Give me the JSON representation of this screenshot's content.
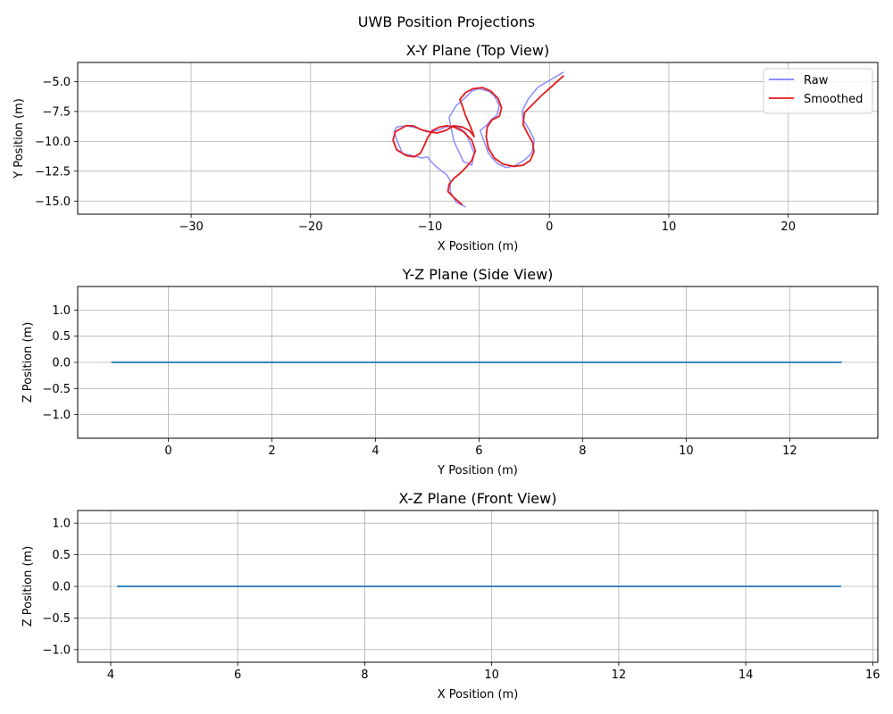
{
  "figure_title": "UWB Position Projections",
  "chart_data": [
    {
      "type": "line",
      "title": "X-Y Plane (Top View)",
      "xlabel": "X Position (m)",
      "ylabel": "Y Position (m)",
      "xlim": [
        -39.5,
        27.5
      ],
      "ylim": [
        -16.1,
        -3.4
      ],
      "xticks": [
        -30,
        -20,
        -10,
        0,
        10,
        20
      ],
      "yticks": [
        -15.0,
        -12.5,
        -10.0,
        -7.5,
        -5.0
      ],
      "xtick_labels": [
        "−30",
        "−20",
        "−10",
        "0",
        "10",
        "20"
      ],
      "ytick_labels": [
        "−15.0",
        "−12.5",
        "−10.0",
        "−7.5",
        "−5.0"
      ],
      "grid": true,
      "legend": "top-right",
      "series": [
        {
          "name": "Raw",
          "color": "#7f7fff",
          "x": [
            -7.0,
            -7.8,
            -8.3,
            -8.3,
            -8.6,
            -9.0,
            -9.5,
            -9.9,
            -10.2,
            -10.7,
            -11.0,
            -11.5,
            -12.3,
            -12.7,
            -13.0,
            -12.8,
            -12.0,
            -11.0,
            -10.3,
            -9.4,
            -8.7,
            -8.0,
            -7.5,
            -7.0,
            -6.7,
            -6.3,
            -6.5,
            -7.2,
            -8.0,
            -8.4,
            -7.8,
            -7.1,
            -6.5,
            -5.9,
            -5.1,
            -4.6,
            -4.2,
            -4.4,
            -4.9,
            -5.2,
            -5.8,
            -5.4,
            -5.1,
            -4.7,
            -4.3,
            -3.6,
            -2.8,
            -2.0,
            -1.5,
            -1.3,
            -1.3,
            -1.7,
            -2.2,
            -2.3,
            -1.8,
            -1.0,
            0.0,
            1.2
          ],
          "y": [
            -15.5,
            -15.1,
            -14.2,
            -13.3,
            -12.8,
            -12.5,
            -12.1,
            -11.7,
            -11.3,
            -11.4,
            -11.3,
            -11.2,
            -11.0,
            -10.1,
            -9.2,
            -8.8,
            -8.7,
            -8.9,
            -9.2,
            -9.1,
            -8.8,
            -8.7,
            -8.9,
            -9.3,
            -10.0,
            -11.0,
            -12.0,
            -11.7,
            -10.0,
            -8.0,
            -7.0,
            -6.4,
            -5.8,
            -5.6,
            -5.8,
            -6.2,
            -7.0,
            -7.8,
            -8.2,
            -8.6,
            -9.1,
            -10.2,
            -11.0,
            -11.5,
            -11.9,
            -12.2,
            -12.0,
            -11.5,
            -11.0,
            -10.2,
            -9.8,
            -9.0,
            -8.2,
            -7.5,
            -6.5,
            -5.5,
            -4.9,
            -4.2
          ]
        },
        {
          "name": "Smoothed",
          "color": "#e41a1c",
          "x": [
            -7.3,
            -7.9,
            -8.5,
            -8.4,
            -8.0,
            -7.5,
            -7.0,
            -6.5,
            -6.2,
            -6.5,
            -7.2,
            -8.0,
            -8.6,
            -9.2,
            -9.8,
            -10.2,
            -10.5,
            -10.8,
            -11.3,
            -12.0,
            -12.8,
            -13.1,
            -12.9,
            -12.0,
            -11.4,
            -10.8,
            -10.1,
            -9.4,
            -8.7,
            -8.0,
            -7.3,
            -6.7,
            -6.3,
            -6.6,
            -7.0,
            -7.3,
            -7.5,
            -7.0,
            -6.4,
            -5.6,
            -4.9,
            -4.3,
            -4.0,
            -4.2,
            -4.8,
            -5.2,
            -5.3,
            -5.1,
            -4.6,
            -3.9,
            -3.0,
            -2.2,
            -1.6,
            -1.3,
            -1.4,
            -1.8,
            -2.2,
            -2.1,
            -1.5,
            -0.7,
            0.2,
            1.2
          ],
          "y": [
            -15.3,
            -14.8,
            -14.2,
            -13.6,
            -13.1,
            -12.7,
            -12.2,
            -11.6,
            -10.8,
            -9.9,
            -9.2,
            -8.8,
            -8.7,
            -8.8,
            -9.1,
            -9.7,
            -10.4,
            -11.0,
            -11.3,
            -11.2,
            -10.7,
            -9.9,
            -9.2,
            -8.7,
            -8.7,
            -9.0,
            -9.2,
            -9.3,
            -9.1,
            -8.7,
            -8.8,
            -9.1,
            -9.6,
            -8.8,
            -7.9,
            -7.0,
            -6.5,
            -5.9,
            -5.6,
            -5.5,
            -5.8,
            -6.4,
            -7.2,
            -7.9,
            -8.2,
            -8.8,
            -9.6,
            -10.6,
            -11.4,
            -11.9,
            -12.1,
            -12.0,
            -11.6,
            -10.9,
            -10.1,
            -9.4,
            -8.6,
            -7.6,
            -7.0,
            -6.2,
            -5.4,
            -4.5
          ]
        }
      ]
    },
    {
      "type": "line",
      "title": "Y-Z Plane (Side View)",
      "xlabel": "Y Position (m)",
      "ylabel": "Z Position (m)",
      "xlim": [
        -1.75,
        13.7
      ],
      "ylim": [
        -1.45,
        1.45
      ],
      "xticks": [
        0,
        2,
        4,
        6,
        8,
        10,
        12
      ],
      "yticks": [
        -1.0,
        -0.5,
        0.0,
        0.5,
        1.0
      ],
      "xtick_labels": [
        "0",
        "2",
        "4",
        "6",
        "8",
        "10",
        "12"
      ],
      "ytick_labels": [
        "−1.0",
        "−0.5",
        "0.0",
        "0.5",
        "1.0"
      ],
      "grid": true,
      "series": [
        {
          "color": "#1f77b4",
          "x": [
            -1.1,
            13.0
          ],
          "y": [
            0.0,
            0.0
          ]
        }
      ]
    },
    {
      "type": "line",
      "title": "X-Z Plane (Front View)",
      "xlabel": "X Position (m)",
      "ylabel": "Z Position (m)",
      "xlim": [
        3.48,
        16.08
      ],
      "ylim": [
        -1.2,
        1.2
      ],
      "xticks": [
        4,
        6,
        8,
        10,
        12,
        14,
        16
      ],
      "yticks": [
        -1.0,
        -0.5,
        0.0,
        0.5,
        1.0
      ],
      "xtick_labels": [
        "4",
        "6",
        "8",
        "10",
        "12",
        "14",
        "16"
      ],
      "ytick_labels": [
        "−1.0",
        "−0.5",
        "0.0",
        "0.5",
        "1.0"
      ],
      "grid": true,
      "series": [
        {
          "color": "#1f77b4",
          "x": [
            4.1,
            15.5
          ],
          "y": [
            0.0,
            0.0
          ]
        }
      ]
    }
  ]
}
